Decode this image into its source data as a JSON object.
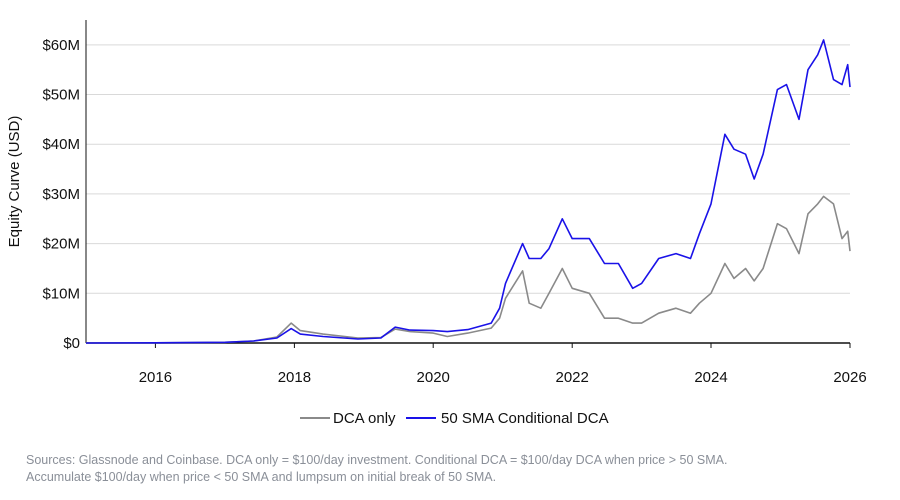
{
  "chart_data": {
    "type": "line",
    "title": "",
    "xlabel": "",
    "ylabel": "Equity Curve (USD)",
    "xlim": [
      "2015-01-01",
      "2026-01-01"
    ],
    "ylim": [
      0,
      65
    ],
    "y_unit": "USD millions",
    "x_ticks": [
      "2016",
      "2018",
      "2020",
      "2022",
      "2024",
      "2026"
    ],
    "y_ticks": [
      {
        "value": 0,
        "label": "$0"
      },
      {
        "value": 10,
        "label": "$10M"
      },
      {
        "value": 20,
        "label": "$20M"
      },
      {
        "value": 30,
        "label": "$30M"
      },
      {
        "value": 40,
        "label": "$40M"
      },
      {
        "value": 50,
        "label": "$50M"
      },
      {
        "value": 60,
        "label": "$60M"
      }
    ],
    "grid": true,
    "legend_position": "bottom-center",
    "series": [
      {
        "name": "DCA only",
        "color": "#8a8a8a",
        "points": [
          [
            "2015-01-01",
            0
          ],
          [
            "2016-01-01",
            0.05
          ],
          [
            "2017-01-01",
            0.15
          ],
          [
            "2017-06-01",
            0.4
          ],
          [
            "2017-10-01",
            1.2
          ],
          [
            "2017-12-15",
            4.0
          ],
          [
            "2018-02-01",
            2.5
          ],
          [
            "2018-06-01",
            1.8
          ],
          [
            "2018-12-01",
            1.0
          ],
          [
            "2019-04-01",
            1.1
          ],
          [
            "2019-06-15",
            2.8
          ],
          [
            "2019-09-01",
            2.3
          ],
          [
            "2020-01-01",
            2.0
          ],
          [
            "2020-03-15",
            1.3
          ],
          [
            "2020-07-01",
            2.0
          ],
          [
            "2020-11-01",
            3.0
          ],
          [
            "2020-12-15",
            5.0
          ],
          [
            "2021-01-15",
            9.0
          ],
          [
            "2021-04-15",
            14.5
          ],
          [
            "2021-05-20",
            8.0
          ],
          [
            "2021-07-20",
            7.0
          ],
          [
            "2021-09-01",
            10.0
          ],
          [
            "2021-11-10",
            15.0
          ],
          [
            "2022-01-01",
            11.0
          ],
          [
            "2022-04-01",
            10.0
          ],
          [
            "2022-06-20",
            5.0
          ],
          [
            "2022-09-01",
            5.0
          ],
          [
            "2022-11-15",
            4.0
          ],
          [
            "2023-01-01",
            4.0
          ],
          [
            "2023-04-01",
            6.0
          ],
          [
            "2023-07-01",
            7.0
          ],
          [
            "2023-09-15",
            6.0
          ],
          [
            "2023-11-01",
            8.0
          ],
          [
            "2024-01-01",
            10.0
          ],
          [
            "2024-03-14",
            16.0
          ],
          [
            "2024-05-01",
            13.0
          ],
          [
            "2024-07-01",
            15.0
          ],
          [
            "2024-08-15",
            12.5
          ],
          [
            "2024-10-01",
            15.0
          ],
          [
            "2024-12-15",
            24.0
          ],
          [
            "2025-02-01",
            23.0
          ],
          [
            "2025-04-08",
            18.0
          ],
          [
            "2025-05-25",
            26.0
          ],
          [
            "2025-07-15",
            28.0
          ],
          [
            "2025-08-15",
            29.5
          ],
          [
            "2025-10-06",
            28.0
          ],
          [
            "2025-11-20",
            21.0
          ],
          [
            "2025-12-20",
            22.5
          ],
          [
            "2026-01-01",
            18.5
          ]
        ]
      },
      {
        "name": "50 SMA Conditional DCA",
        "color": "#1a12e8",
        "points": [
          [
            "2015-01-01",
            0
          ],
          [
            "2016-01-01",
            0.05
          ],
          [
            "2017-01-01",
            0.15
          ],
          [
            "2017-06-01",
            0.4
          ],
          [
            "2017-10-01",
            1.0
          ],
          [
            "2017-12-15",
            2.9
          ],
          [
            "2018-02-01",
            1.8
          ],
          [
            "2018-06-01",
            1.3
          ],
          [
            "2018-12-01",
            0.8
          ],
          [
            "2019-04-01",
            1.0
          ],
          [
            "2019-06-15",
            3.2
          ],
          [
            "2019-09-01",
            2.6
          ],
          [
            "2020-01-01",
            2.5
          ],
          [
            "2020-03-15",
            2.3
          ],
          [
            "2020-07-01",
            2.7
          ],
          [
            "2020-11-01",
            4.0
          ],
          [
            "2020-12-15",
            7.0
          ],
          [
            "2021-01-15",
            12.0
          ],
          [
            "2021-04-15",
            20.0
          ],
          [
            "2021-05-20",
            17.0
          ],
          [
            "2021-07-20",
            17.0
          ],
          [
            "2021-09-01",
            19.0
          ],
          [
            "2021-11-10",
            25.0
          ],
          [
            "2022-01-01",
            21.0
          ],
          [
            "2022-04-01",
            21.0
          ],
          [
            "2022-06-20",
            16.0
          ],
          [
            "2022-09-01",
            16.0
          ],
          [
            "2022-11-15",
            11.0
          ],
          [
            "2023-01-01",
            12.0
          ],
          [
            "2023-04-01",
            17.0
          ],
          [
            "2023-07-01",
            18.0
          ],
          [
            "2023-09-15",
            17.0
          ],
          [
            "2023-11-01",
            22.0
          ],
          [
            "2024-01-01",
            28.0
          ],
          [
            "2024-03-14",
            42.0
          ],
          [
            "2024-05-01",
            39.0
          ],
          [
            "2024-07-01",
            38.0
          ],
          [
            "2024-08-15",
            33.0
          ],
          [
            "2024-10-01",
            38.0
          ],
          [
            "2024-12-15",
            51.0
          ],
          [
            "2025-02-01",
            52.0
          ],
          [
            "2025-04-08",
            45.0
          ],
          [
            "2025-05-25",
            55.0
          ],
          [
            "2025-07-15",
            58.0
          ],
          [
            "2025-08-15",
            61.0
          ],
          [
            "2025-10-06",
            53.0
          ],
          [
            "2025-11-20",
            52.0
          ],
          [
            "2025-12-20",
            56.0
          ],
          [
            "2026-01-01",
            51.5
          ]
        ]
      }
    ]
  },
  "footer": {
    "line1": "Sources: Glassnode and Coinbase. DCA only = $100/day investment. Conditional DCA = $100/day DCA when price > 50 SMA.",
    "line2": "Accumulate $100/day when price < 50 SMA and lumpsum on initial break of 50 SMA."
  }
}
